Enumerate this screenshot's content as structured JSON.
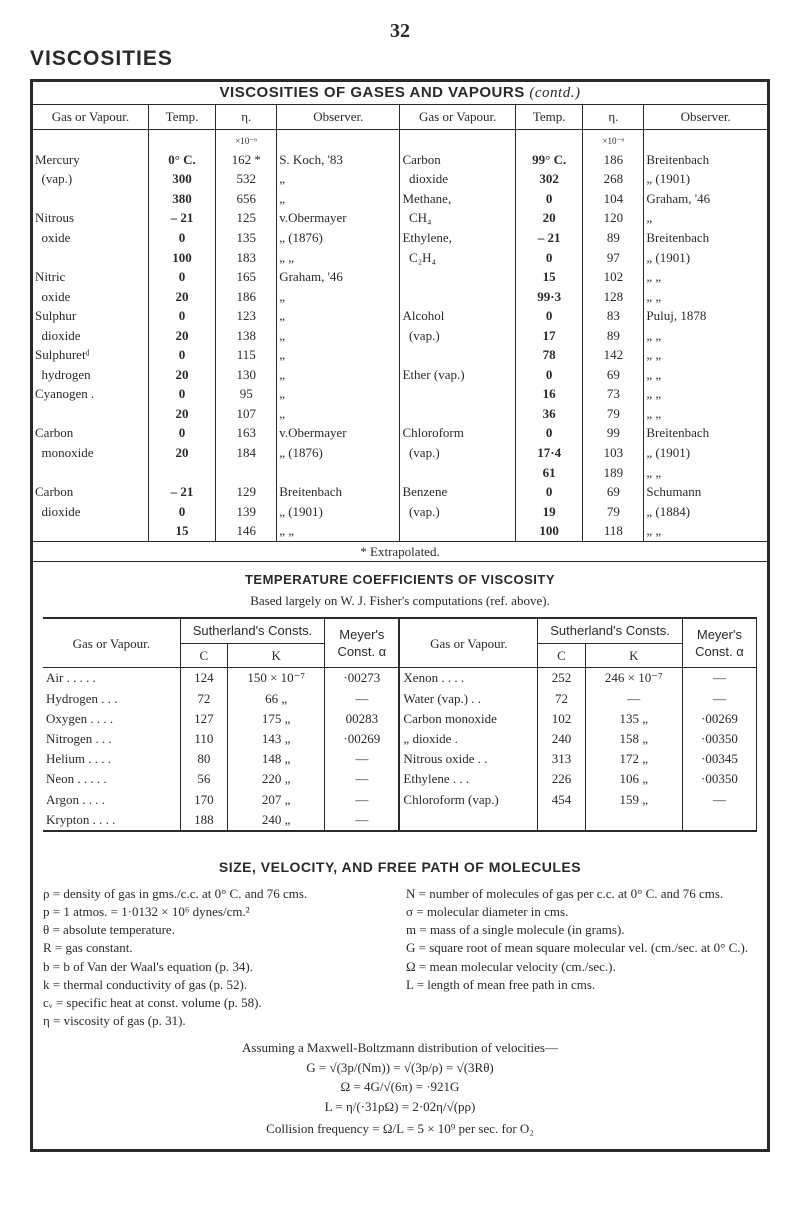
{
  "page_number": "32",
  "section_title": "VISCOSITIES",
  "table1": {
    "title": "VISCOSITIES OF GASES AND VAPOURS",
    "title_suffix": "(contd.)",
    "headers": [
      "Gas or Vapour.",
      "Temp.",
      "η.",
      "Observer.",
      "Gas or Vapour.",
      "Temp.",
      "η.",
      "Observer."
    ],
    "exp_left": "×10⁻⁶",
    "exp_right": "×10⁻⁶",
    "rows": [
      [
        "Mercury",
        "0° C.",
        "162 *",
        "S. Koch, '83",
        "Carbon",
        "99° C.",
        "186",
        "Breitenbach"
      ],
      [
        "  (vap.)",
        "300",
        "532",
        "„",
        "  dioxide",
        "302",
        "268",
        "„  (1901)"
      ],
      [
        "",
        "380",
        "656",
        "„",
        "Methane,",
        "0",
        "104",
        "Graham, '46"
      ],
      [
        "Nitrous",
        "– 21",
        "125",
        "v.Obermayer",
        "  CH₄",
        "20",
        "120",
        "„"
      ],
      [
        "  oxide",
        "0",
        "135",
        "„  (1876)",
        "Ethylene,",
        "– 21",
        "89",
        "Breitenbach"
      ],
      [
        "",
        "100",
        "183",
        "„    „",
        "  C₂H₄",
        "0",
        "97",
        "„  (1901)"
      ],
      [
        "Nitric",
        "0",
        "165",
        "Graham, '46",
        "",
        "15",
        "102",
        "„    „"
      ],
      [
        "  oxide",
        "20",
        "186",
        "„",
        "",
        "99·3",
        "128",
        "„    „"
      ],
      [
        "Sulphur",
        "0",
        "123",
        "„",
        "Alcohol",
        "0",
        "83",
        "Puluj, 1878"
      ],
      [
        "  dioxide",
        "20",
        "138",
        "„",
        "  (vap.)",
        "17",
        "89",
        "„    „"
      ],
      [
        "Sulphuretᵈ",
        "0",
        "115",
        "„",
        "",
        "78",
        "142",
        "„    „"
      ],
      [
        "  hydrogen",
        "20",
        "130",
        "„",
        "Ether (vap.)",
        "0",
        "69",
        "„    „"
      ],
      [
        "Cyanogen .",
        "0",
        "95",
        "„",
        "",
        "16",
        "73",
        "„    „"
      ],
      [
        "",
        "20",
        "107",
        "„",
        "",
        "36",
        "79",
        "„    „"
      ],
      [
        "Carbon",
        "0",
        "163",
        "v.Obermayer",
        "Chloroform",
        "0",
        "99",
        "Breitenbach"
      ],
      [
        "  monoxide",
        "20",
        "184",
        "„  (1876)",
        "  (vap.)",
        "17·4",
        "103",
        "„  (1901)"
      ],
      [
        "",
        "",
        "",
        "",
        "",
        "61",
        "189",
        "„    „"
      ],
      [
        "Carbon",
        "– 21",
        "129",
        "Breitenbach",
        "Benzene",
        "0",
        "69",
        "Schumann"
      ],
      [
        "  dioxide",
        "0",
        "139",
        "„  (1901)",
        "  (vap.)",
        "19",
        "79",
        "„  (1884)"
      ],
      [
        "",
        "15",
        "146",
        "„    „",
        "",
        "100",
        "118",
        "„    „"
      ]
    ],
    "footnote": "* Extrapolated."
  },
  "table2": {
    "subtitle": "TEMPERATURE COEFFICIENTS OF VISCOSITY",
    "based": "Based largely on W. J. Fisher's computations (ref. above).",
    "h_gv": "Gas or Vapour.",
    "h_suth": "Sutherland's Consts.",
    "h_meyer": "Meyer's Const. α",
    "h_c": "C",
    "h_k": "K",
    "rows": [
      [
        "Air . . . . .",
        "124",
        "150 × 10⁻⁷",
        "·00273",
        "Xenon . . . .",
        "252",
        "246 × 10⁻⁷",
        "—"
      ],
      [
        "Hydrogen . . .",
        "72",
        "66    „",
        "—",
        "Water (vap.) . .",
        "72",
        "—",
        "—"
      ],
      [
        "Oxygen . . . .",
        "127",
        "175   „",
        "00283",
        "Carbon monoxide",
        "102",
        "135   „",
        "·00269"
      ],
      [
        "Nitrogen . . .",
        "110",
        "143   „",
        "·00269",
        "„    dioxide .",
        "240",
        "158   „",
        "·00350"
      ],
      [
        "Helium . . . .",
        "80",
        "148   „",
        "—",
        "Nitrous oxide . .",
        "313",
        "172   „",
        "·00345"
      ],
      [
        "Neon . . . . .",
        "56",
        "220   „",
        "—",
        "Ethylene  . . .",
        "226",
        "106   „",
        "·00350"
      ],
      [
        "Argon  . . . .",
        "170",
        "207   „",
        "—",
        "Chloroform (vap.)",
        "454",
        "159   „",
        "—"
      ],
      [
        "Krypton . . . .",
        "188",
        "240   „",
        "—",
        "",
        "",
        "",
        ""
      ]
    ]
  },
  "size_vel": {
    "title": "SIZE, VELOCITY, AND FREE PATH OF MOLECULES",
    "left_defs": [
      "ρ = density of gas in gms./c.c. at 0° C. and 76 cms.",
      "p = 1 atmos. = 1·0132 × 10⁶ dynes/cm.²",
      "θ = absolute temperature.",
      "R = gas constant.",
      "b = b of Van der Waal's equation (p. 34).",
      "k = thermal conductivity of gas (p. 52).",
      "cᵥ = specific heat at const. volume (p. 58).",
      "η = viscosity of gas (p. 31)."
    ],
    "right_defs": [
      "N = number of molecules of gas per c.c. at 0° C. and 76 cms.",
      "σ = molecular diameter in cms.",
      "m = mass of a single molecule (in grams).",
      "G = square root of mean square mole­cular vel. (cm./sec. at 0° C.).",
      "Ω = mean molecular velocity (cm./sec.).",
      "L = length of mean free path in cms."
    ],
    "assuming": "Assuming a Maxwell-Boltzmann distribution of velocities—",
    "eq1": "G = √(3p/(Nm)) = √(3p/ρ) = √(3Rθ)",
    "eq2": "Ω = 4G/√(6π) = ·921G",
    "eq3": "L = η/(·31ρΩ) = 2·02η/√(pρ)",
    "collision": "Collision frequency = Ω/L = 5 × 10⁹ per sec. for O₂"
  }
}
